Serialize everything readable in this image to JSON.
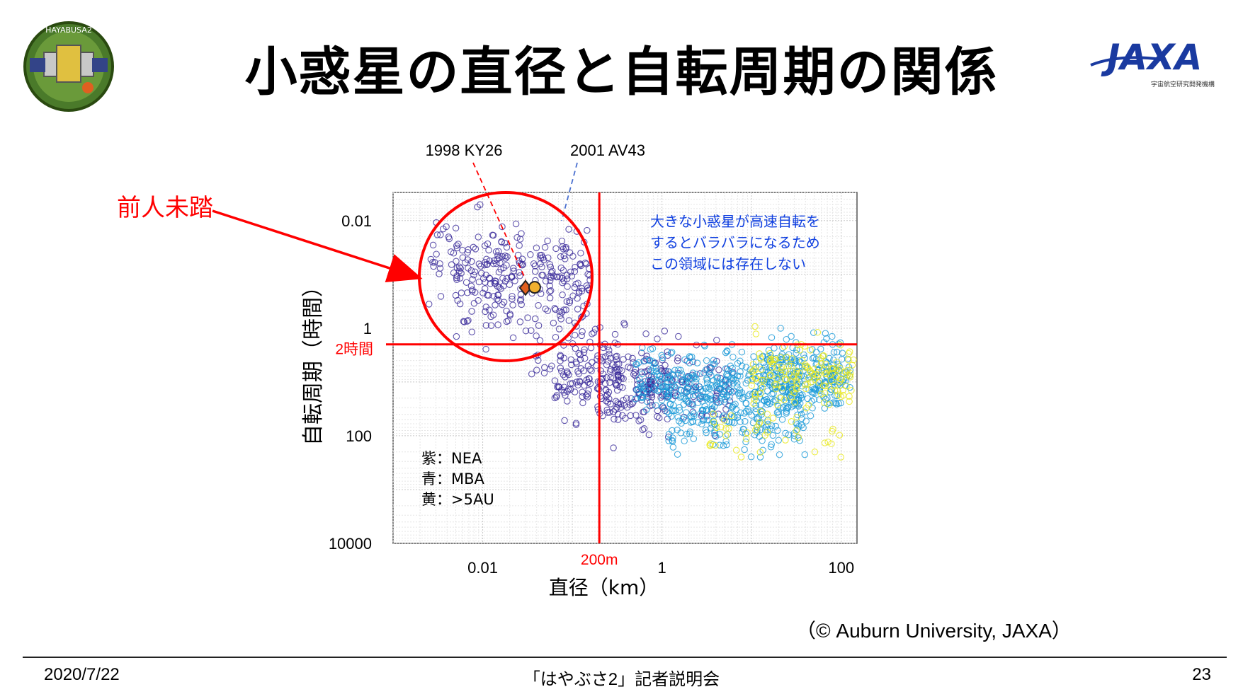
{
  "slide": {
    "title": "小惑星の直径と自転周期の関係",
    "logo_left": {
      "name": "hayabusa2-mission-patch",
      "text": "HAYABUSA2"
    },
    "logo_right": {
      "name": "jaxa-logo",
      "text": "JAXA",
      "subtitle": "宇宙航空研究開発機構"
    },
    "credit": "（© Auburn University, JAXA）",
    "footer": {
      "date": "2020/7/22",
      "event": "「はやぶさ2」記者説明会",
      "page": "23"
    }
  },
  "chart_data": {
    "type": "scatter",
    "xlabel": "直径（km）",
    "ylabel": "自転周期（時間）",
    "x_scale": "log",
    "y_scale": "log",
    "y_inverted": true,
    "xlim": [
      0.001,
      150
    ],
    "ylim": [
      0.003,
      10000
    ],
    "x_ticks": [
      {
        "value": 0.01,
        "label": "0.01"
      },
      {
        "value": 1,
        "label": "1"
      },
      {
        "value": 100,
        "label": "100"
      }
    ],
    "y_ticks": [
      {
        "value": 0.01,
        "label": "0.01"
      },
      {
        "value": 1,
        "label": "1"
      },
      {
        "value": 100,
        "label": "100"
      },
      {
        "value": 10000,
        "label": "10000"
      }
    ],
    "grid": true,
    "legend": {
      "placement": "bottom-left",
      "entries": [
        {
          "label": "紫：NEA",
          "color": "#3a2a9a"
        },
        {
          "label": "青：MBA",
          "color": "#1a9ad8"
        },
        {
          "label": "黄：>5AU",
          "color": "#e8e81a"
        }
      ]
    },
    "reference_lines": [
      {
        "axis": "x",
        "value": 0.2,
        "label": "200m",
        "color": "#ff0000"
      },
      {
        "axis": "y",
        "value": 2,
        "label": "2時間",
        "color": "#ff0000"
      }
    ],
    "highlighted_points": [
      {
        "name": "1998 KY26",
        "x": 0.03,
        "y": 0.178,
        "color": "#e06020"
      },
      {
        "name": "2001 AV43",
        "x": 0.038,
        "y": 0.174,
        "color": "#f0b030"
      }
    ],
    "annotations": [
      {
        "text": "前人未踏",
        "color": "#ff0000"
      },
      {
        "lines": [
          "大きな小惑星が高速自転を",
          "するとバラバラになるため",
          "この領域には存在しない"
        ],
        "color": "#1040e0"
      }
    ],
    "series": [
      {
        "name": "NEA",
        "color": "#3a2a9a",
        "clusters": [
          {
            "n": 230,
            "x_log_range": [
              -2.3,
              -0.8
            ],
            "y_log_mean": -0.8,
            "y_log_sd": 0.45
          },
          {
            "n": 70,
            "x_log_range": [
              -2.6,
              -1.5
            ],
            "y_log_mean": -1.4,
            "y_log_sd": 0.35
          },
          {
            "n": 190,
            "x_log_range": [
              -1.2,
              0.1
            ],
            "y_log_mean": 0.95,
            "y_log_sd": 0.35
          },
          {
            "n": 140,
            "x_log_range": [
              -0.7,
              0.8
            ],
            "y_log_mean": 1.15,
            "y_log_sd": 0.35
          },
          {
            "n": 45,
            "x_log_range": [
              -1.5,
              -0.4
            ],
            "y_log_mean": 0.35,
            "y_log_sd": 0.3
          }
        ]
      },
      {
        "name": "MBA",
        "color": "#1a9ad8",
        "clusters": [
          {
            "n": 420,
            "x_log_range": [
              -0.3,
              2.0
            ],
            "y_log_mean": 1.0,
            "y_log_sd": 0.35
          },
          {
            "n": 200,
            "x_log_range": [
              0.0,
              1.6
            ],
            "y_log_mean": 1.6,
            "y_log_sd": 0.35
          },
          {
            "n": 110,
            "x_log_range": [
              1.2,
              2.1
            ],
            "y_log_mean": 0.75,
            "y_log_sd": 0.25
          }
        ]
      },
      {
        "name": ">5AU",
        "color": "#e8e81a",
        "clusters": [
          {
            "n": 150,
            "x_log_range": [
              1.0,
              2.15
            ],
            "y_log_mean": 0.9,
            "y_log_sd": 0.28
          },
          {
            "n": 40,
            "x_log_range": [
              0.5,
              2.0
            ],
            "y_log_mean": 1.9,
            "y_log_sd": 0.25
          }
        ]
      }
    ]
  }
}
